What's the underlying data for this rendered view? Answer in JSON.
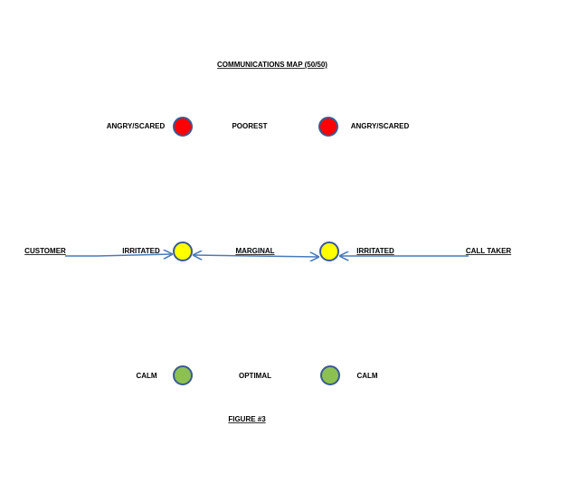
{
  "title": "COMMUNICATIONS MAP (50/50)",
  "rows": [
    {
      "left_label": "ANGRY/SCARED",
      "center_label": "POOREST",
      "right_label": "ANGRY/SCARED"
    },
    {
      "left_end": "CUSTOMER",
      "left_label": "IRRITATED",
      "center_label": "MARGINAL",
      "right_label": "IRRITATED",
      "right_end": "CALL TAKER"
    },
    {
      "left_label": "CALM",
      "center_label": "OPTIMAL",
      "right_label": "CALM"
    }
  ],
  "caption": "FIGURE #3"
}
